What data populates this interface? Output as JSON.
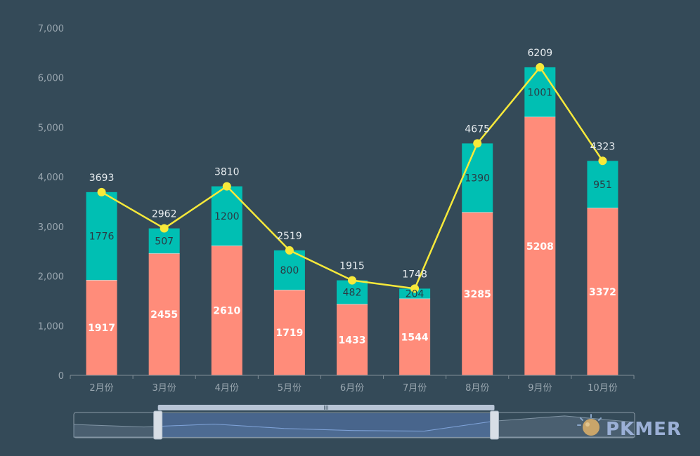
{
  "chart_data": {
    "type": "bar",
    "stacked": true,
    "categories": [
      "2月份",
      "3月份",
      "4月份",
      "5月份",
      "6月份",
      "7月份",
      "8月份",
      "9月份",
      "10月份"
    ],
    "series": [
      {
        "values": [
          1917,
          2455,
          2610,
          1719,
          1433,
          1544,
          3285,
          5208,
          3372
        ],
        "color": "#ff8c7a"
      },
      {
        "values": [
          1776,
          507,
          1200,
          800,
          482,
          204,
          1390,
          1001,
          951
        ],
        "color": "#00bfb3"
      }
    ],
    "line": {
      "type": "line",
      "values": [
        3693,
        2962,
        3810,
        2519,
        1915,
        1748,
        4675,
        6209,
        4323
      ],
      "color": "#f7e93a"
    },
    "yaxis": {
      "min": 0,
      "max": 7000,
      "step": 1000
    },
    "ytick_labels": [
      "0",
      "1,000",
      "2,000",
      "3,000",
      "4,000",
      "5,000",
      "6,000",
      "7,000"
    ],
    "grid": false,
    "data_labels": true,
    "zoom_slider": {
      "start": 0.15,
      "end": 0.75,
      "handle_label": "III"
    }
  },
  "branding": {
    "logo_text": "PKMER"
  },
  "colors": {
    "background": "#344a58",
    "axis": "#7f8d96",
    "slider_fill": "#4f6f9e",
    "slider_bar": "#b8c5d6"
  }
}
